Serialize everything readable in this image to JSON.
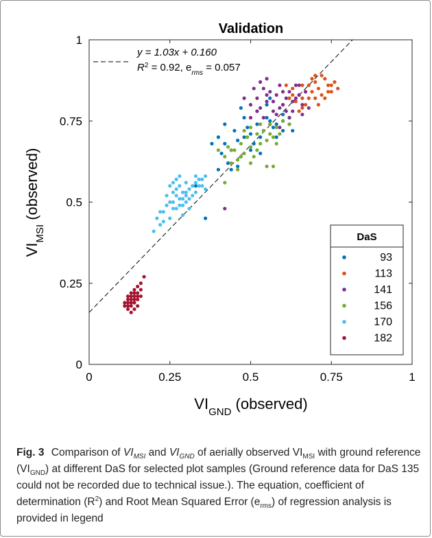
{
  "chart_data": {
    "type": "scatter",
    "title": "Validation",
    "xlabel": {
      "main": "VI",
      "sub": "GND",
      "rest": " (observed)"
    },
    "ylabel": {
      "main": "VI",
      "sub": "MSI",
      "rest": " (observed)"
    },
    "xlim": [
      0,
      1
    ],
    "ylim": [
      0,
      1
    ],
    "x_ticks": [
      0,
      0.25,
      0.5,
      0.75,
      1
    ],
    "y_ticks": [
      0,
      0.25,
      0.5,
      0.75,
      1
    ],
    "x_tick_labels": [
      "0",
      "0.25",
      "0.5",
      "0.75",
      "1"
    ],
    "y_tick_labels": [
      "0",
      "0.25",
      "0.5",
      "0.75",
      "1"
    ],
    "grid": false,
    "legend_placement": "lower-right",
    "legend_title": "DaS",
    "annotation": {
      "equation_line1": "y = 1.03x + 0.160",
      "equation_line2_a": "R",
      "equation_line2_b": "2",
      "equation_line2_c": " = 0.92, e",
      "equation_line2_d": "rms",
      "equation_line2_e": " = 0.057"
    },
    "regression_line": {
      "slope": 1.03,
      "intercept": 0.16,
      "style": "dashed",
      "color": "#000000"
    },
    "series": [
      {
        "name": "93",
        "color": "#0072BD",
        "points": [
          [
            0.4,
            0.7
          ],
          [
            0.42,
            0.68
          ],
          [
            0.44,
            0.66
          ],
          [
            0.45,
            0.72
          ],
          [
            0.46,
            0.69
          ],
          [
            0.47,
            0.64
          ],
          [
            0.48,
            0.7
          ],
          [
            0.49,
            0.73
          ],
          [
            0.5,
            0.71
          ],
          [
            0.51,
            0.68
          ],
          [
            0.52,
            0.74
          ],
          [
            0.53,
            0.7
          ],
          [
            0.54,
            0.72
          ],
          [
            0.55,
            0.76
          ],
          [
            0.56,
            0.75
          ],
          [
            0.57,
            0.73
          ],
          [
            0.58,
            0.74
          ],
          [
            0.6,
            0.77
          ],
          [
            0.62,
            0.76
          ],
          [
            0.63,
            0.72
          ],
          [
            0.41,
            0.65
          ],
          [
            0.43,
            0.62
          ],
          [
            0.46,
            0.61
          ],
          [
            0.33,
            0.55
          ],
          [
            0.36,
            0.45
          ],
          [
            0.4,
            0.6
          ],
          [
            0.52,
            0.78
          ],
          [
            0.55,
            0.8
          ],
          [
            0.48,
            0.76
          ],
          [
            0.5,
            0.66
          ],
          [
            0.58,
            0.7
          ],
          [
            0.6,
            0.72
          ],
          [
            0.38,
            0.68
          ],
          [
            0.42,
            0.74
          ],
          [
            0.47,
            0.79
          ],
          [
            0.53,
            0.65
          ],
          [
            0.56,
            0.82
          ],
          [
            0.62,
            0.74
          ],
          [
            0.44,
            0.6
          ]
        ]
      },
      {
        "name": "113",
        "color": "#D95319",
        "points": [
          [
            0.6,
            0.8
          ],
          [
            0.62,
            0.82
          ],
          [
            0.63,
            0.85
          ],
          [
            0.64,
            0.81
          ],
          [
            0.65,
            0.83
          ],
          [
            0.66,
            0.86
          ],
          [
            0.67,
            0.84
          ],
          [
            0.68,
            0.82
          ],
          [
            0.69,
            0.88
          ],
          [
            0.7,
            0.87
          ],
          [
            0.71,
            0.85
          ],
          [
            0.72,
            0.83
          ],
          [
            0.73,
            0.88
          ],
          [
            0.74,
            0.86
          ],
          [
            0.75,
            0.84
          ],
          [
            0.76,
            0.87
          ],
          [
            0.77,
            0.85
          ],
          [
            0.65,
            0.78
          ],
          [
            0.67,
            0.8
          ],
          [
            0.7,
            0.82
          ],
          [
            0.72,
            0.89
          ],
          [
            0.71,
            0.8
          ],
          [
            0.74,
            0.84
          ],
          [
            0.69,
            0.84
          ],
          [
            0.66,
            0.82
          ],
          [
            0.63,
            0.83
          ],
          [
            0.68,
            0.86
          ],
          [
            0.73,
            0.82
          ],
          [
            0.75,
            0.86
          ],
          [
            0.7,
            0.89
          ],
          [
            0.61,
            0.86
          ],
          [
            0.66,
            0.79
          ]
        ]
      },
      {
        "name": "141",
        "color": "#7E2F8E",
        "points": [
          [
            0.5,
            0.8
          ],
          [
            0.52,
            0.82
          ],
          [
            0.53,
            0.79
          ],
          [
            0.54,
            0.85
          ],
          [
            0.55,
            0.81
          ],
          [
            0.56,
            0.84
          ],
          [
            0.57,
            0.78
          ],
          [
            0.58,
            0.83
          ],
          [
            0.59,
            0.86
          ],
          [
            0.6,
            0.8
          ],
          [
            0.61,
            0.82
          ],
          [
            0.62,
            0.84
          ],
          [
            0.63,
            0.78
          ],
          [
            0.64,
            0.86
          ],
          [
            0.65,
            0.83
          ],
          [
            0.66,
            0.8
          ],
          [
            0.67,
            0.84
          ],
          [
            0.68,
            0.79
          ],
          [
            0.54,
            0.76
          ],
          [
            0.56,
            0.74
          ],
          [
            0.58,
            0.77
          ],
          [
            0.6,
            0.75
          ],
          [
            0.51,
            0.85
          ],
          [
            0.53,
            0.87
          ],
          [
            0.59,
            0.79
          ],
          [
            0.62,
            0.76
          ],
          [
            0.65,
            0.86
          ],
          [
            0.48,
            0.82
          ],
          [
            0.55,
            0.83
          ],
          [
            0.61,
            0.78
          ],
          [
            0.66,
            0.77
          ],
          [
            0.63,
            0.81
          ],
          [
            0.57,
            0.81
          ],
          [
            0.52,
            0.78
          ],
          [
            0.59,
            0.73
          ],
          [
            0.64,
            0.82
          ],
          [
            0.5,
            0.76
          ],
          [
            0.42,
            0.48
          ],
          [
            0.55,
            0.88
          ],
          [
            0.6,
            0.84
          ]
        ]
      },
      {
        "name": "156",
        "color": "#77AC30",
        "points": [
          [
            0.4,
            0.66
          ],
          [
            0.42,
            0.64
          ],
          [
            0.44,
            0.62
          ],
          [
            0.45,
            0.66
          ],
          [
            0.46,
            0.63
          ],
          [
            0.47,
            0.68
          ],
          [
            0.48,
            0.65
          ],
          [
            0.49,
            0.7
          ],
          [
            0.5,
            0.67
          ],
          [
            0.51,
            0.64
          ],
          [
            0.52,
            0.71
          ],
          [
            0.53,
            0.68
          ],
          [
            0.54,
            0.72
          ],
          [
            0.55,
            0.69
          ],
          [
            0.56,
            0.74
          ],
          [
            0.57,
            0.7
          ],
          [
            0.58,
            0.73
          ],
          [
            0.59,
            0.71
          ],
          [
            0.6,
            0.75
          ],
          [
            0.46,
            0.6
          ],
          [
            0.5,
            0.62
          ],
          [
            0.52,
            0.66
          ],
          [
            0.55,
            0.61
          ],
          [
            0.57,
            0.61
          ],
          [
            0.43,
            0.67
          ],
          [
            0.48,
            0.72
          ],
          [
            0.53,
            0.74
          ],
          [
            0.56,
            0.71
          ],
          [
            0.58,
            0.68
          ],
          [
            0.42,
            0.56
          ],
          [
            0.62,
            0.74
          ],
          [
            0.5,
            0.73
          ],
          [
            0.44,
            0.66
          ],
          [
            0.47,
            0.64
          ]
        ]
      },
      {
        "name": "170",
        "color": "#4DBEEE",
        "points": [
          [
            0.2,
            0.41
          ],
          [
            0.21,
            0.45
          ],
          [
            0.22,
            0.47
          ],
          [
            0.23,
            0.44
          ],
          [
            0.24,
            0.49
          ],
          [
            0.25,
            0.5
          ],
          [
            0.26,
            0.48
          ],
          [
            0.27,
            0.52
          ],
          [
            0.28,
            0.51
          ],
          [
            0.29,
            0.53
          ],
          [
            0.3,
            0.5
          ],
          [
            0.31,
            0.54
          ],
          [
            0.32,
            0.52
          ],
          [
            0.33,
            0.56
          ],
          [
            0.34,
            0.55
          ],
          [
            0.35,
            0.57
          ],
          [
            0.36,
            0.58
          ],
          [
            0.25,
            0.45
          ],
          [
            0.27,
            0.48
          ],
          [
            0.29,
            0.46
          ],
          [
            0.3,
            0.56
          ],
          [
            0.28,
            0.55
          ],
          [
            0.26,
            0.53
          ],
          [
            0.24,
            0.52
          ],
          [
            0.31,
            0.51
          ],
          [
            0.33,
            0.53
          ],
          [
            0.22,
            0.43
          ],
          [
            0.27,
            0.57
          ],
          [
            0.29,
            0.49
          ],
          [
            0.32,
            0.55
          ],
          [
            0.35,
            0.55
          ],
          [
            0.26,
            0.5
          ],
          [
            0.28,
            0.58
          ],
          [
            0.3,
            0.52
          ],
          [
            0.34,
            0.57
          ],
          [
            0.23,
            0.47
          ],
          [
            0.36,
            0.54
          ],
          [
            0.25,
            0.55
          ],
          [
            0.29,
            0.51
          ],
          [
            0.31,
            0.48
          ],
          [
            0.33,
            0.58
          ],
          [
            0.27,
            0.54
          ],
          [
            0.3,
            0.53
          ],
          [
            0.26,
            0.56
          ],
          [
            0.28,
            0.49
          ]
        ]
      },
      {
        "name": "182",
        "color": "#A2142F",
        "points": [
          [
            0.11,
            0.18
          ],
          [
            0.12,
            0.17
          ],
          [
            0.12,
            0.19
          ],
          [
            0.13,
            0.18
          ],
          [
            0.13,
            0.2
          ],
          [
            0.13,
            0.22
          ],
          [
            0.14,
            0.19
          ],
          [
            0.14,
            0.21
          ],
          [
            0.14,
            0.23
          ],
          [
            0.15,
            0.2
          ],
          [
            0.15,
            0.22
          ],
          [
            0.15,
            0.24
          ],
          [
            0.16,
            0.21
          ],
          [
            0.16,
            0.25
          ],
          [
            0.17,
            0.27
          ],
          [
            0.12,
            0.21
          ],
          [
            0.13,
            0.16
          ],
          [
            0.14,
            0.17
          ],
          [
            0.15,
            0.18
          ],
          [
            0.12,
            0.2
          ],
          [
            0.13,
            0.19
          ],
          [
            0.14,
            0.2
          ],
          [
            0.15,
            0.21
          ],
          [
            0.11,
            0.19
          ],
          [
            0.16,
            0.23
          ],
          [
            0.13,
            0.21
          ],
          [
            0.14,
            0.22
          ],
          [
            0.12,
            0.18
          ]
        ]
      }
    ]
  },
  "caption": {
    "label": "Fig. 3",
    "text_1": "Comparison of ",
    "text_vi1": "VI",
    "text_vi1_sub": "MSI",
    "text_2": " and ",
    "text_vi2": "VI",
    "text_vi2_sub": "GND",
    "text_3": " of aerially observed VI",
    "text_3_sub": "MSI",
    "text_4": " with ground reference (VI",
    "text_4_sub": "GND",
    "text_5": ") at different DaS for selected plot samples (Ground reference data for DaS 135 could not be recorded due to technical issue.). The equation, coefficient of determination (R",
    "text_5_sup": "2",
    "text_6": ") and Root Mean Squared Error (e",
    "text_6_sub": "rms",
    "text_7": ") of regression analysis is provided in legend"
  }
}
